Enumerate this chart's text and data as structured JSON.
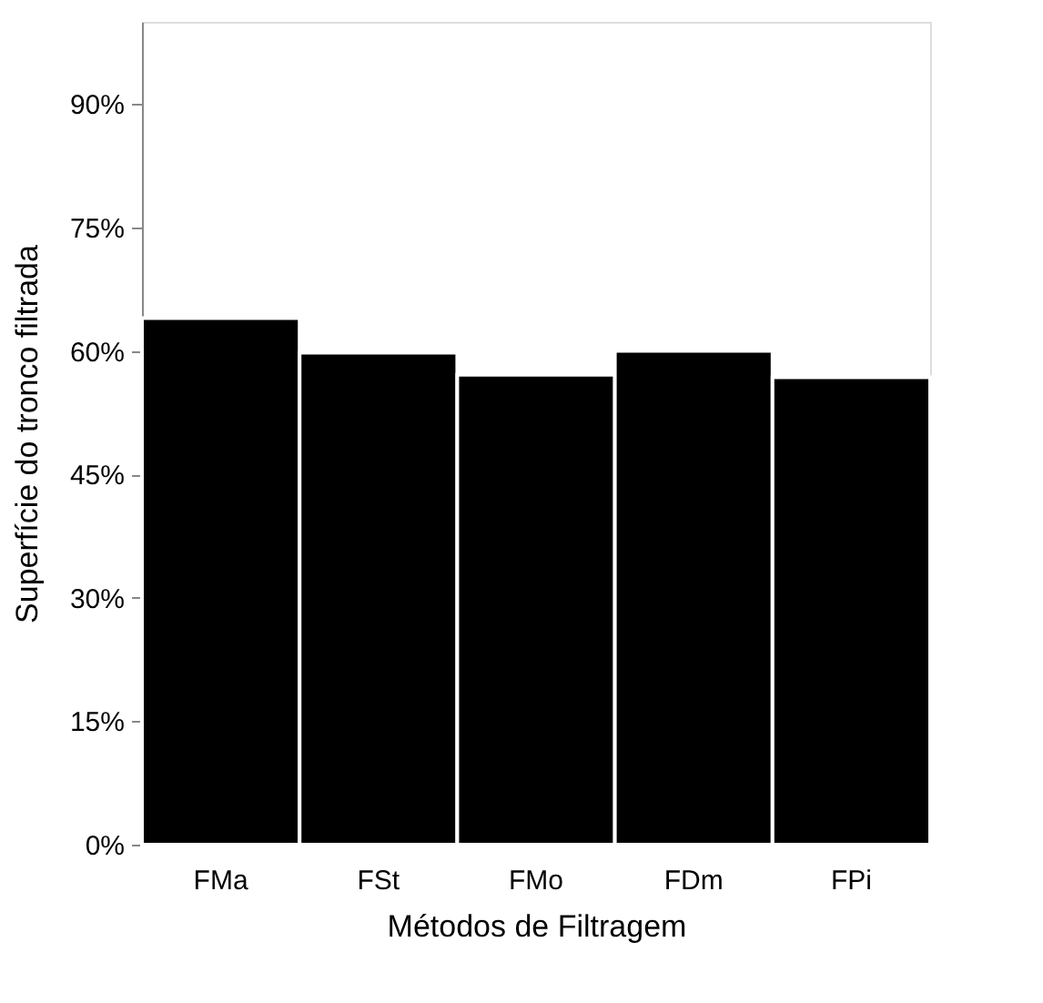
{
  "chart_data": {
    "type": "bar",
    "xlabel": "Métodos de Filtragem",
    "ylabel": "Superfície do tronco filtrada",
    "categories": [
      "FMa",
      "FSt",
      "FMo",
      "FDm",
      "FPi"
    ],
    "values": [
      64,
      59.8,
      57.1,
      60,
      56.8
    ],
    "color": "#000000",
    "ylim": [
      0,
      100
    ],
    "yticks": [
      {
        "value": 0,
        "label": "0%"
      },
      {
        "value": 15,
        "label": "15%"
      },
      {
        "value": 30,
        "label": "30%"
      },
      {
        "value": 45,
        "label": "45%"
      },
      {
        "value": 60,
        "label": "60%"
      },
      {
        "value": 75,
        "label": "75%"
      },
      {
        "value": 90,
        "label": "90%"
      }
    ],
    "grid": false
  }
}
